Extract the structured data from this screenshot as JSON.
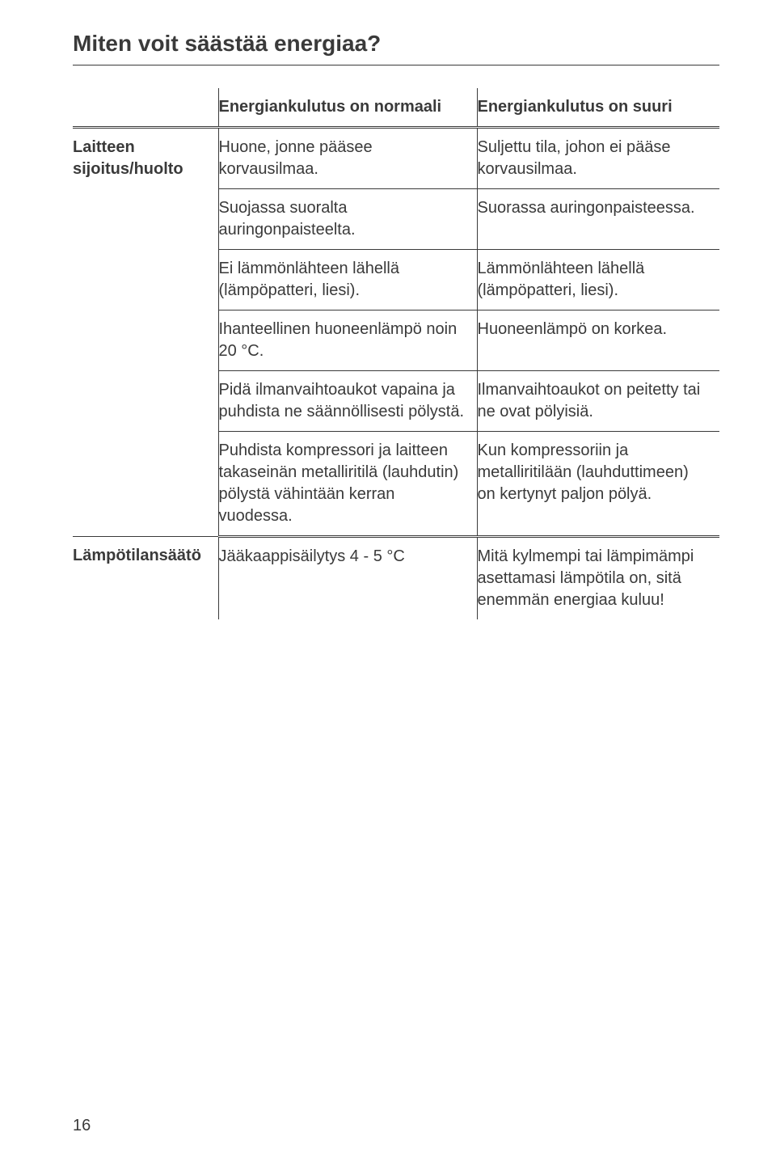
{
  "title": "Miten voit säästää energiaa?",
  "columns": {
    "row_label_empty": "",
    "normal": "Energiankulutus on normaali",
    "high": "Energiankulutus on suuri"
  },
  "sections": [
    {
      "label": "Laitteen sijoitus/huolto",
      "rows": [
        {
          "normal": "Huone, jonne pääsee korvausilmaa.",
          "high": "Suljettu tila, johon ei pääse korvausilmaa."
        },
        {
          "normal": "Suojassa suoralta auringonpaisteelta.",
          "high": "Suorassa auringonpaisteessa."
        },
        {
          "normal": "Ei lämmönlähteen lähellä (lämpöpatteri, liesi).",
          "high": "Lämmönlähteen lähellä (lämpöpatteri, liesi)."
        },
        {
          "normal": "Ihanteellinen huoneenlämpö noin 20 °C.",
          "high": "Huoneenlämpö on korkea."
        },
        {
          "normal": "Pidä ilmanvaihtoaukot vapaina ja puhdista ne säännöllisesti pölystä.",
          "high": "Ilmanvaihtoaukot on peitetty tai ne ovat pölyisiä."
        },
        {
          "normal": "Puhdista kompressori ja laitteen takaseinän metalliritilä (lauhdutin) pölystä vähintään kerran vuodessa.",
          "high": "Kun kompressoriin ja metalliritilään (lauhduttimeen) on kertynyt paljon pölyä."
        }
      ]
    },
    {
      "label": "Lämpötilansäätö",
      "rows": [
        {
          "normal": "Jääkaappisäilytys 4 - 5 °C",
          "high": "Mitä kylmempi tai lämpimämpi asettamasi lämpötila on, sitä enemmän energiaa kuluu!"
        }
      ]
    }
  ],
  "page_number": "16"
}
